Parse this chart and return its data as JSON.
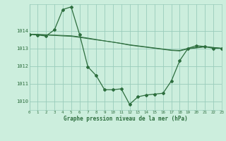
{
  "xlabel": "Graphe pression niveau de la mer (hPa)",
  "bg_color": "#cceedd",
  "grid_color": "#99ccbb",
  "line_color": "#2d6e3e",
  "xmin": 0,
  "xmax": 23,
  "ymin": 1009.5,
  "ymax": 1015.5,
  "yticks": [
    1010,
    1011,
    1012,
    1013,
    1014
  ],
  "line1_x": [
    0,
    1,
    2,
    3,
    4,
    5,
    6,
    7,
    8,
    9,
    10,
    11,
    12,
    13,
    14,
    15,
    16,
    17,
    18,
    19,
    20,
    21,
    22,
    23
  ],
  "line1_y": [
    1013.8,
    1013.75,
    1013.7,
    1014.05,
    1015.2,
    1015.35,
    1013.8,
    1011.95,
    1011.45,
    1010.65,
    1010.65,
    1010.7,
    1009.82,
    1010.25,
    1010.35,
    1010.4,
    1010.45,
    1011.15,
    1012.3,
    1013.0,
    1013.15,
    1013.1,
    1013.0,
    1013.0
  ],
  "line2_x": [
    0,
    1,
    2,
    3,
    4,
    5,
    6,
    7,
    8,
    9,
    10,
    11,
    12,
    13,
    14,
    15,
    16,
    17,
    18,
    19,
    20,
    21,
    22,
    23
  ],
  "line2_y": [
    1013.8,
    1013.78,
    1013.75,
    1013.73,
    1013.7,
    1013.68,
    1013.62,
    1013.55,
    1013.48,
    1013.42,
    1013.35,
    1013.28,
    1013.2,
    1013.14,
    1013.08,
    1013.02,
    1012.96,
    1012.9,
    1012.88,
    1013.0,
    1013.05,
    1013.1,
    1013.05,
    1013.0
  ],
  "line3_x": [
    0,
    1,
    2,
    3,
    4,
    5,
    6,
    7,
    8,
    9,
    10,
    11,
    12,
    13,
    14,
    15,
    16,
    17,
    18,
    19,
    20,
    21,
    22,
    23
  ],
  "line3_y": [
    1013.8,
    1013.79,
    1013.77,
    1013.75,
    1013.73,
    1013.71,
    1013.65,
    1013.58,
    1013.5,
    1013.42,
    1013.35,
    1013.27,
    1013.18,
    1013.12,
    1013.06,
    1013.0,
    1012.94,
    1012.88,
    1012.85,
    1012.97,
    1013.02,
    1013.08,
    1013.04,
    1013.0
  ]
}
